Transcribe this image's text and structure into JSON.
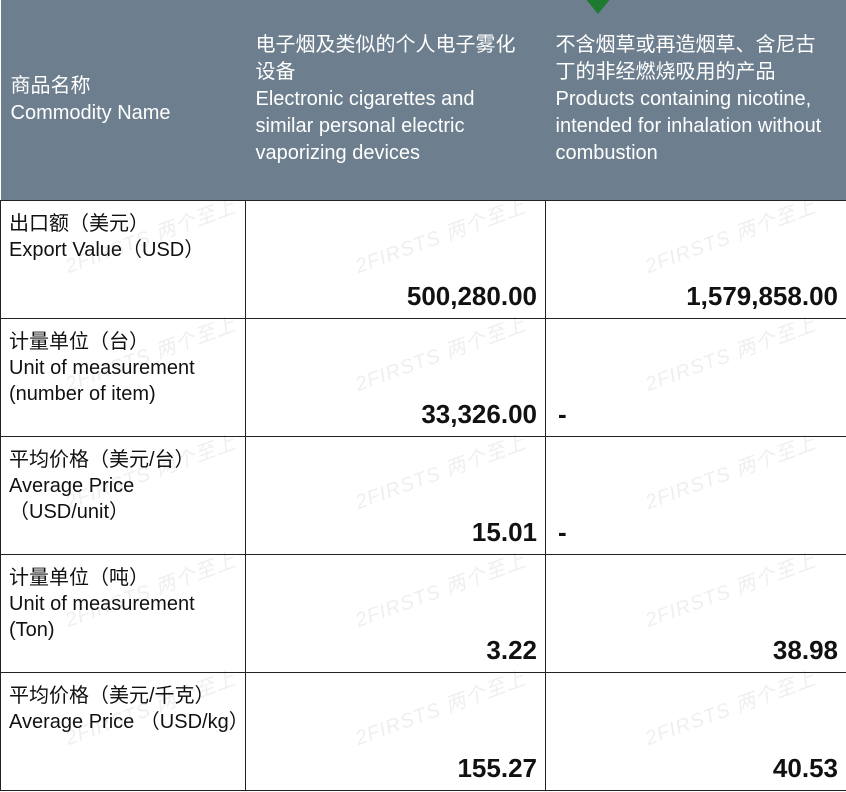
{
  "colors": {
    "header_bg": "#6d7f8e",
    "header_fg": "#ffffff",
    "body_fg": "#111111",
    "grid": "#222222",
    "arrow": "#1e7a2e",
    "watermark": "rgba(120,120,120,0.12)"
  },
  "watermark_text": "2FIRSTS 两个至上",
  "header": {
    "rowlabel": {
      "cn": "商品名称",
      "en": "Commodity Name"
    },
    "col2": {
      "cn": "电子烟及类似的个人电子雾化设备",
      "en": "Electronic cigarettes and similar personal electric vaporizing devices"
    },
    "col3": {
      "cn": "不含烟草或再造烟草、含尼古丁的非经燃烧吸用的产品",
      "en": "Products containing nicotine, intended for inhalation without combustion"
    }
  },
  "rows": [
    {
      "label": {
        "cn": "出口额（美元）",
        "en": " Export Value（USD）"
      },
      "c2": "500,280.00",
      "c3": "1,579,858.00"
    },
    {
      "label": {
        "cn": "计量单位（台）",
        "en": "Unit of measurement (number of item)"
      },
      "c2": "33,326.00",
      "c3": "-"
    },
    {
      "label": {
        "cn": "平均价格（美元/台）",
        "en": "Average Price （USD/unit）"
      },
      "c2": "15.01",
      "c3": "-"
    },
    {
      "label": {
        "cn": "计量单位（吨）",
        "en": "Unit of measurement (Ton)"
      },
      "c2": "3.22",
      "c3": "38.98"
    },
    {
      "label": {
        "cn": "平均价格（美元/千克）",
        "en": "Average Price （USD/kg）"
      },
      "c2": "155.27",
      "c3": "40.53"
    }
  ]
}
